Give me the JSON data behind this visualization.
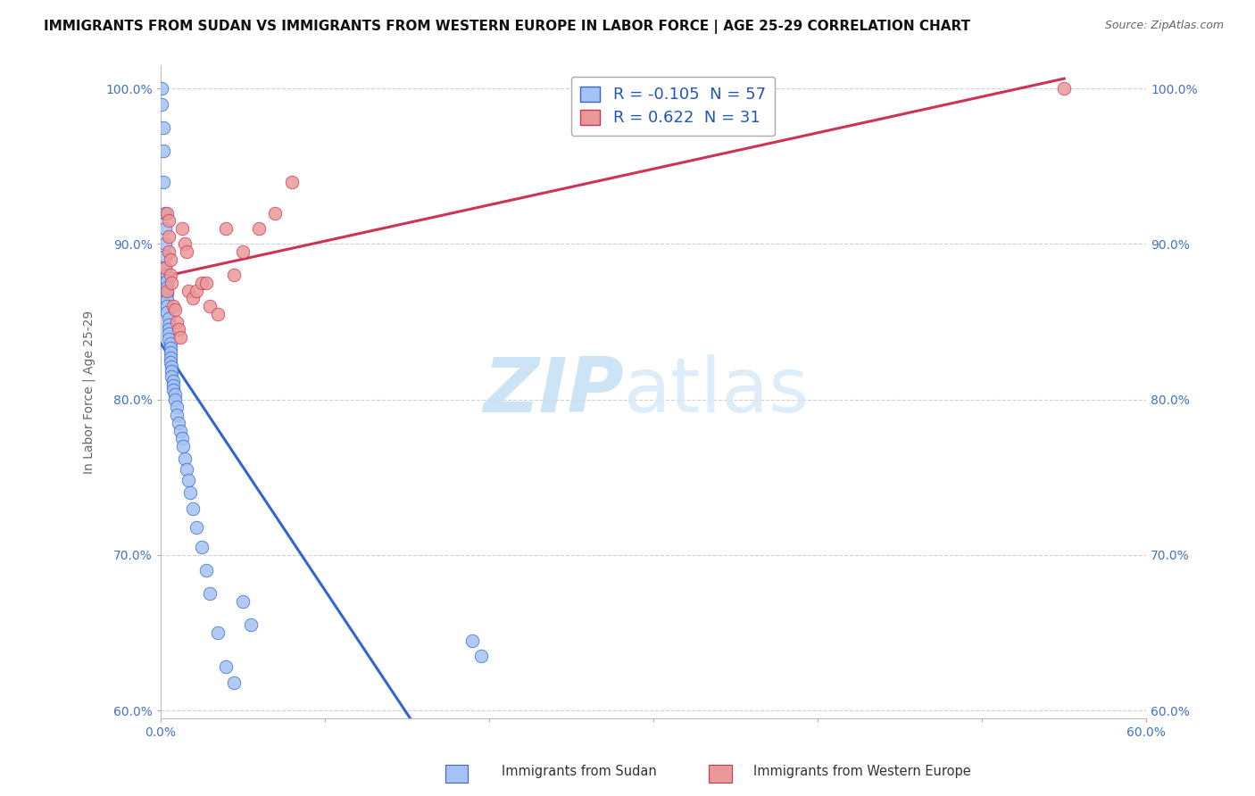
{
  "title": "IMMIGRANTS FROM SUDAN VS IMMIGRANTS FROM WESTERN EUROPE IN LABOR FORCE | AGE 25-29 CORRELATION CHART",
  "source": "Source: ZipAtlas.com",
  "ylabel": "In Labor Force | Age 25-29",
  "xlim": [
    0.0,
    0.6
  ],
  "ylim": [
    0.595,
    1.015
  ],
  "xticks": [
    0.0,
    0.1,
    0.2,
    0.3,
    0.4,
    0.5,
    0.6
  ],
  "xticklabels": [
    "0.0%",
    "",
    "",
    "",
    "",
    "",
    "60.0%"
  ],
  "yticks": [
    0.6,
    0.7,
    0.8,
    0.9,
    1.0
  ],
  "yticklabels": [
    "60.0%",
    "70.0%",
    "80.0%",
    "90.0%",
    "100.0%"
  ],
  "legend_r_blue": "-0.105",
  "legend_n_blue": "57",
  "legend_r_pink": "0.622",
  "legend_n_pink": "31",
  "legend_label_blue": "Immigrants from Sudan",
  "legend_label_pink": "Immigrants from Western Europe",
  "blue_color": "#a4c2f4",
  "pink_color": "#ea9999",
  "blue_line_color": "#3366cc",
  "pink_line_color": "#cc3355",
  "background_color": "#ffffff",
  "grid_color": "#cccccc",
  "sudan_x": [
    0.001,
    0.001,
    0.002,
    0.002,
    0.002,
    0.003,
    0.003,
    0.003,
    0.003,
    0.003,
    0.004,
    0.004,
    0.004,
    0.004,
    0.004,
    0.004,
    0.004,
    0.005,
    0.005,
    0.005,
    0.005,
    0.005,
    0.006,
    0.006,
    0.006,
    0.006,
    0.006,
    0.007,
    0.007,
    0.007,
    0.008,
    0.008,
    0.008,
    0.009,
    0.009,
    0.01,
    0.01,
    0.011,
    0.012,
    0.013,
    0.014,
    0.015,
    0.016,
    0.017,
    0.018,
    0.02,
    0.022,
    0.025,
    0.028,
    0.03,
    0.035,
    0.04,
    0.045,
    0.05,
    0.055,
    0.19,
    0.195
  ],
  "sudan_y": [
    1.0,
    0.99,
    0.975,
    0.96,
    0.94,
    0.92,
    0.91,
    0.9,
    0.892,
    0.885,
    0.88,
    0.876,
    0.872,
    0.868,
    0.864,
    0.86,
    0.856,
    0.852,
    0.848,
    0.845,
    0.842,
    0.839,
    0.836,
    0.833,
    0.83,
    0.827,
    0.824,
    0.821,
    0.818,
    0.815,
    0.812,
    0.809,
    0.806,
    0.803,
    0.8,
    0.795,
    0.79,
    0.785,
    0.78,
    0.775,
    0.77,
    0.762,
    0.755,
    0.748,
    0.74,
    0.73,
    0.718,
    0.705,
    0.69,
    0.675,
    0.65,
    0.628,
    0.618,
    0.67,
    0.655,
    0.645,
    0.635
  ],
  "western_europe_x": [
    0.003,
    0.004,
    0.004,
    0.005,
    0.005,
    0.005,
    0.006,
    0.006,
    0.007,
    0.008,
    0.009,
    0.01,
    0.011,
    0.012,
    0.013,
    0.015,
    0.016,
    0.017,
    0.02,
    0.022,
    0.025,
    0.028,
    0.03,
    0.035,
    0.04,
    0.045,
    0.05,
    0.06,
    0.07,
    0.08,
    0.55
  ],
  "western_europe_y": [
    0.885,
    0.87,
    0.92,
    0.915,
    0.905,
    0.895,
    0.89,
    0.88,
    0.875,
    0.86,
    0.858,
    0.85,
    0.845,
    0.84,
    0.91,
    0.9,
    0.895,
    0.87,
    0.865,
    0.87,
    0.875,
    0.875,
    0.86,
    0.855,
    0.91,
    0.88,
    0.895,
    0.91,
    0.92,
    0.94,
    1.0
  ],
  "title_fontsize": 11,
  "axis_label_fontsize": 10,
  "tick_fontsize": 10,
  "watermark_zip": "ZIP",
  "watermark_atlas": "atlas",
  "watermark_color_zip": "#c5dff5",
  "watermark_color_atlas": "#c5dff5"
}
